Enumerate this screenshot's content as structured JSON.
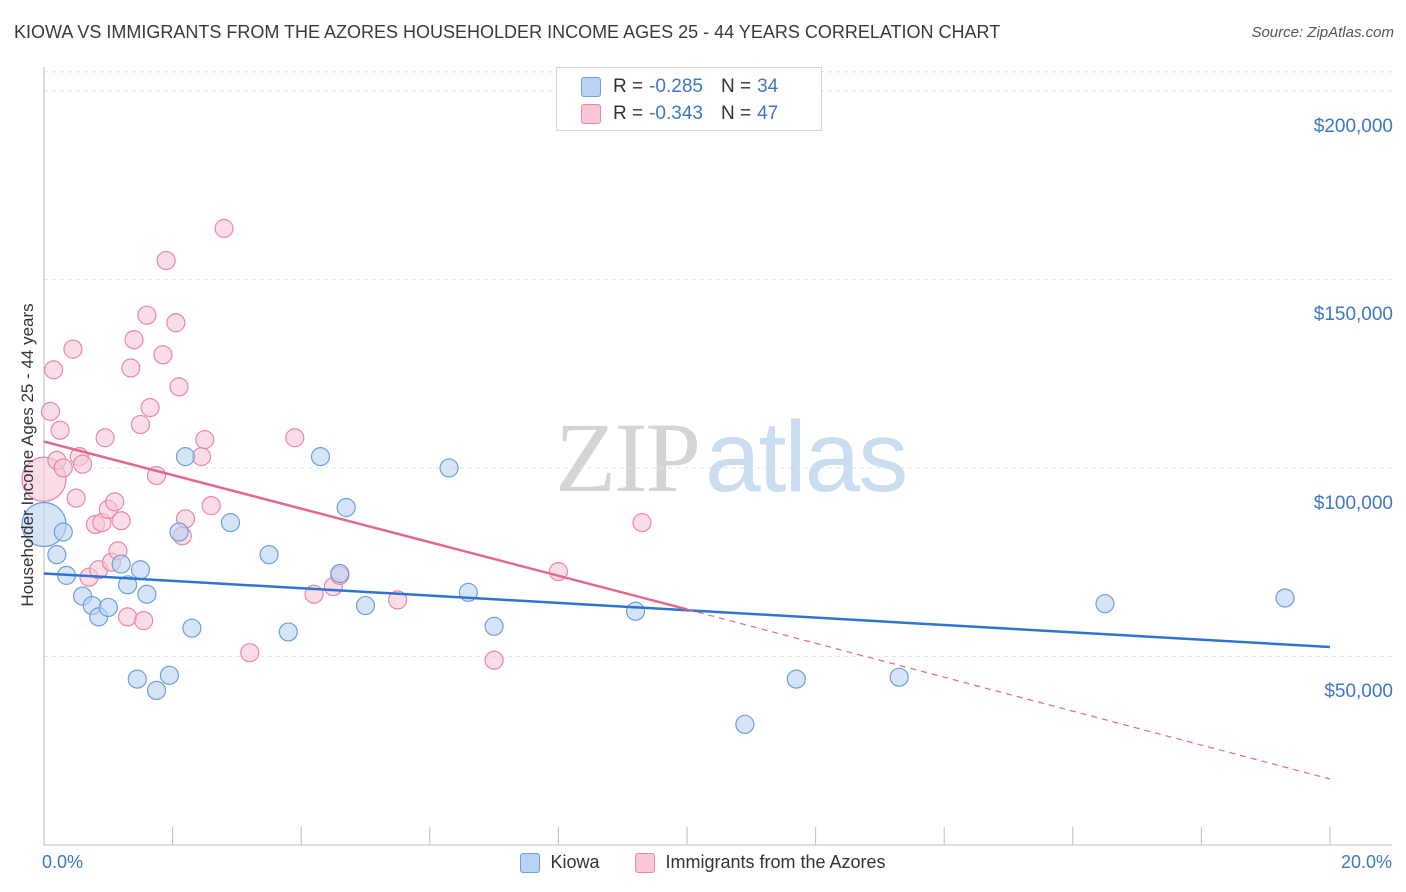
{
  "title": "KIOWA VS IMMIGRANTS FROM THE AZORES HOUSEHOLDER INCOME AGES 25 - 44 YEARS CORRELATION CHART",
  "source": "Source: ZipAtlas.com",
  "watermark": {
    "zip": "ZIP",
    "atlas": "atlas"
  },
  "legend": {
    "rows": [
      {
        "r_label": "R =",
        "r_value": "-0.285",
        "n_label": "N =",
        "n_value": "34"
      },
      {
        "r_label": "R =",
        "r_value": "-0.343",
        "n_label": "N =",
        "n_value": "47"
      }
    ]
  },
  "colors": {
    "kiowa_fill": "#b9d3f2",
    "kiowa_stroke": "#6f9fdc",
    "kiowa_line": "#2f74cf",
    "azores_fill": "#f8c6d4",
    "azores_stroke": "#e889a6",
    "azores_line": "#e06891",
    "grid": "#e2e2e2",
    "tick_text": "#3d77c8"
  },
  "chart_data": {
    "type": "scatter",
    "title": "KIOWA VS IMMIGRANTS FROM THE AZORES HOUSEHOLDER INCOME AGES 25 - 44 YEARS CORRELATION CHART",
    "xlabel": "",
    "ylabel": "Householder Income Ages 25 - 44 years",
    "xlim": [
      0,
      20
    ],
    "ylim": [
      0,
      205000
    ],
    "x_unit": "%",
    "x_tick_labels": [
      "0.0%",
      "20.0%"
    ],
    "y_ticks": [
      50000,
      100000,
      150000,
      200000
    ],
    "y_tick_labels": [
      "$50,000",
      "$100,000",
      "$150,000",
      "$200,000"
    ],
    "grid": true,
    "legend_placement": "top-center",
    "series": [
      {
        "name": "Kiowa",
        "r": -0.285,
        "n": 34,
        "trend": {
          "x": [
            0,
            20
          ],
          "y": [
            72000,
            52500
          ],
          "dashed_extension": false
        },
        "points": [
          [
            0.0,
            85000
          ],
          [
            0.2,
            77000
          ],
          [
            0.3,
            83000
          ],
          [
            0.35,
            71500
          ],
          [
            0.6,
            66000
          ],
          [
            0.75,
            63500
          ],
          [
            0.85,
            60500
          ],
          [
            1.0,
            63000
          ],
          [
            1.2,
            74500
          ],
          [
            1.3,
            69000
          ],
          [
            1.45,
            44000
          ],
          [
            1.5,
            73000
          ],
          [
            1.6,
            66500
          ],
          [
            1.75,
            41000
          ],
          [
            1.95,
            45000
          ],
          [
            2.1,
            83000
          ],
          [
            2.2,
            103000
          ],
          [
            2.3,
            57500
          ],
          [
            2.9,
            85500
          ],
          [
            3.5,
            77000
          ],
          [
            3.8,
            56500
          ],
          [
            4.3,
            103000
          ],
          [
            4.6,
            72000
          ],
          [
            4.7,
            89500
          ],
          [
            5.0,
            63500
          ],
          [
            6.3,
            100000
          ],
          [
            6.6,
            67000
          ],
          [
            7.0,
            58000
          ],
          [
            9.2,
            62000
          ],
          [
            10.9,
            32000
          ],
          [
            11.7,
            44000
          ],
          [
            13.3,
            44500
          ],
          [
            16.5,
            64000
          ],
          [
            19.3,
            65500
          ]
        ]
      },
      {
        "name": "Immigrants from the Azores",
        "r": -0.343,
        "n": 47,
        "trend": {
          "x": [
            0,
            10
          ],
          "y": [
            107000,
            62500
          ],
          "dashed_x": [
            10,
            20
          ],
          "dashed_y": [
            62500,
            17500
          ]
        },
        "points": [
          [
            0.0,
            97000
          ],
          [
            0.1,
            115000
          ],
          [
            0.15,
            126000
          ],
          [
            0.2,
            102000
          ],
          [
            0.25,
            110000
          ],
          [
            0.3,
            100000
          ],
          [
            0.45,
            131500
          ],
          [
            0.5,
            92000
          ],
          [
            0.55,
            103000
          ],
          [
            0.6,
            101000
          ],
          [
            0.7,
            71000
          ],
          [
            0.8,
            85000
          ],
          [
            0.85,
            73000
          ],
          [
            0.9,
            85500
          ],
          [
            0.95,
            108000
          ],
          [
            1.0,
            89000
          ],
          [
            1.05,
            75000
          ],
          [
            1.1,
            91000
          ],
          [
            1.15,
            78000
          ],
          [
            1.2,
            86000
          ],
          [
            1.3,
            60500
          ],
          [
            1.4,
            134000
          ],
          [
            1.35,
            126500
          ],
          [
            1.5,
            111500
          ],
          [
            1.55,
            59500
          ],
          [
            1.6,
            140500
          ],
          [
            1.65,
            116000
          ],
          [
            1.75,
            98000
          ],
          [
            1.85,
            130000
          ],
          [
            1.9,
            155000
          ],
          [
            2.1,
            121500
          ],
          [
            2.05,
            138500
          ],
          [
            2.15,
            82000
          ],
          [
            2.2,
            86500
          ],
          [
            2.45,
            103000
          ],
          [
            2.5,
            107500
          ],
          [
            2.6,
            90000
          ],
          [
            2.8,
            163500
          ],
          [
            3.2,
            51000
          ],
          [
            3.9,
            108000
          ],
          [
            4.2,
            66500
          ],
          [
            4.5,
            68500
          ],
          [
            4.6,
            71500
          ],
          [
            5.5,
            65000
          ],
          [
            7.0,
            49000
          ],
          [
            8.0,
            72500
          ],
          [
            9.3,
            85500
          ]
        ]
      }
    ]
  },
  "bottom_legend": [
    {
      "label": "Kiowa"
    },
    {
      "label": "Immigrants from the Azores"
    }
  ]
}
